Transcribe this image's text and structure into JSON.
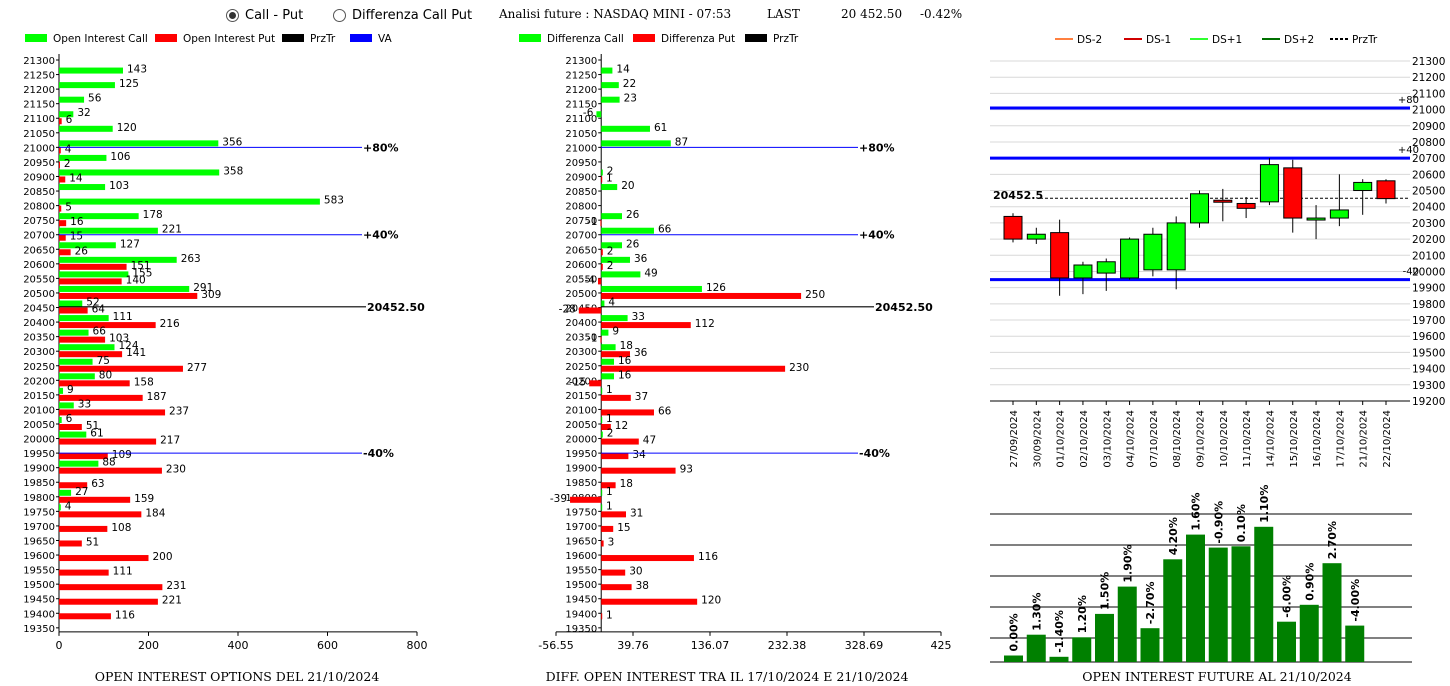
{
  "header": {
    "radio_call_put": "Call - Put",
    "radio_diff": "Differenza Call Put",
    "title": "Analisi future : NASDAQ MINI - 07:53",
    "last_label": "LAST",
    "last_value": "20 452.50",
    "change": "-0.42%"
  },
  "colors": {
    "green": "#00ff00",
    "red": "#ff0000",
    "blue": "#0000ff",
    "dark_green": "#008000"
  },
  "chart_data": [
    {
      "type": "bar",
      "orientation": "horizontal",
      "title": "OPEN INTEREST OPTIONS DEL 21/10/2024",
      "legend": [
        "Open Interest Call",
        "Open Interest Put",
        "PrzTr",
        "VA"
      ],
      "strikes": [
        21300,
        21250,
        21200,
        21150,
        21100,
        21050,
        21000,
        20950,
        20900,
        20850,
        20800,
        20750,
        20700,
        20650,
        20600,
        20550,
        20500,
        20450,
        20400,
        20350,
        20300,
        20250,
        20200,
        20150,
        20100,
        20050,
        20000,
        19950,
        19900,
        19850,
        19800,
        19750,
        19700,
        19650,
        19600,
        19550,
        19500,
        19450,
        19400,
        19350
      ],
      "call": [
        null,
        143,
        125,
        56,
        32,
        120,
        356,
        106,
        358,
        103,
        583,
        178,
        221,
        127,
        263,
        155,
        291,
        52,
        111,
        66,
        124,
        75,
        80,
        9,
        33,
        6,
        61,
        null,
        88,
        null,
        27,
        4,
        null,
        null,
        null,
        null,
        null,
        null,
        null,
        null
      ],
      "put": [
        null,
        null,
        null,
        null,
        6,
        null,
        4,
        2,
        14,
        null,
        5,
        16,
        15,
        26,
        151,
        140,
        309,
        64,
        216,
        103,
        141,
        277,
        158,
        187,
        237,
        51,
        217,
        109,
        230,
        63,
        159,
        184,
        108,
        51,
        200,
        111,
        231,
        221,
        116,
        null
      ],
      "xlim": [
        0,
        800
      ],
      "xticks": [
        0,
        200,
        400,
        600,
        800
      ],
      "levels": [
        {
          "strike": 21000,
          "label": "+80%"
        },
        {
          "strike": 20700,
          "label": "+40%"
        },
        {
          "strike": 19950,
          "label": "-40%"
        }
      ],
      "price": {
        "value": 20452.5,
        "label": "20452.50"
      }
    },
    {
      "type": "bar",
      "orientation": "horizontal",
      "title": "DIFF. OPEN INTEREST TRA IL 17/10/2024 E 21/10/2024",
      "legend": [
        "Differenza Call",
        "Differenza Put",
        "PrzTr"
      ],
      "strikes": [
        21300,
        21250,
        21200,
        21150,
        21100,
        21050,
        21000,
        20950,
        20900,
        20850,
        20800,
        20750,
        20700,
        20650,
        20600,
        20550,
        20500,
        20450,
        20400,
        20350,
        20300,
        20250,
        20200,
        20150,
        20100,
        20050,
        20000,
        19950,
        19900,
        19850,
        19800,
        19750,
        19700,
        19650,
        19600,
        19550,
        19500,
        19450,
        19400,
        19350
      ],
      "call": [
        null,
        14,
        22,
        23,
        -6,
        61,
        87,
        null,
        2,
        20,
        null,
        26,
        66,
        26,
        36,
        49,
        126,
        4,
        33,
        9,
        18,
        16,
        16,
        1,
        null,
        1,
        2,
        null,
        null,
        null,
        1,
        1,
        null,
        null,
        null,
        null,
        null,
        null,
        null,
        null
      ],
      "put": [
        null,
        null,
        null,
        null,
        null,
        null,
        null,
        null,
        1,
        null,
        null,
        -1,
        null,
        2,
        2,
        -4,
        250,
        -28,
        112,
        -1,
        36,
        230,
        -15,
        37,
        66,
        12,
        47,
        34,
        93,
        18,
        -39,
        31,
        15,
        3,
        116,
        30,
        38,
        120,
        1,
        null
      ],
      "xlim": [
        -56.55,
        425
      ],
      "xticks": [
        "-56.55",
        "39.76",
        "136.07",
        "232.38",
        "328.69",
        "425"
      ],
      "levels": [
        {
          "strike": 21000,
          "label": "+80%"
        },
        {
          "strike": 20700,
          "label": "+40%"
        },
        {
          "strike": 19950,
          "label": "-40%"
        }
      ],
      "price": {
        "value": 20452.5,
        "label": "20452.50"
      }
    },
    {
      "type": "candlestick",
      "legend": [
        "DS-2",
        "DS-1",
        "DS+1",
        "DS+2",
        "PrzTr"
      ],
      "dates": [
        "27/09/2024",
        "30/09/2024",
        "01/10/2024",
        "02/10/2024",
        "03/10/2024",
        "04/10/2024",
        "07/10/2024",
        "08/10/2024",
        "09/10/2024",
        "10/10/2024",
        "11/10/2024",
        "14/10/2024",
        "15/10/2024",
        "16/10/2024",
        "17/10/2024",
        "21/10/2024",
        "22/10/2024"
      ],
      "open": [
        20340,
        20200,
        20240,
        19960,
        19990,
        19960,
        20010,
        20010,
        20300,
        20440,
        20420,
        20430,
        20640,
        20330,
        20330,
        20500,
        20560
      ],
      "close": [
        20200,
        20230,
        19960,
        20040,
        20060,
        20200,
        20230,
        20300,
        20480,
        20430,
        20390,
        20660,
        20330,
        20330,
        20380,
        20550,
        20450
      ],
      "high": [
        20360,
        20270,
        20320,
        20060,
        20080,
        20210,
        20270,
        20340,
        20500,
        20510,
        20460,
        20700,
        20690,
        20410,
        20600,
        20570,
        20570
      ],
      "low": [
        20180,
        20170,
        19850,
        19860,
        19880,
        19950,
        19970,
        19890,
        20270,
        20310,
        20330,
        20410,
        20240,
        20200,
        20280,
        20350,
        20420
      ],
      "ylim": [
        19200,
        21300
      ],
      "yticks": [
        19200,
        19300,
        19400,
        19500,
        19600,
        19700,
        19800,
        19900,
        20000,
        20100,
        20200,
        20300,
        20400,
        20500,
        20600,
        20700,
        20800,
        20900,
        21000,
        21100,
        21200,
        21300
      ],
      "price_label": "20452.5",
      "levels": [
        {
          "value": 21010,
          "label": "+80"
        },
        {
          "value": 20700,
          "label": "+40"
        },
        {
          "value": 19950,
          "label": "-40"
        }
      ]
    },
    {
      "type": "bar",
      "title": "OPEN INTEREST FUTURE AL 21/10/2024",
      "labels": [
        "0.00%",
        "1.30%",
        "-1.40%",
        "1.20%",
        "1.50%",
        "1.90%",
        "-2.70%",
        "4.20%",
        "1.60%",
        "-0.90%",
        "0.10%",
        "1.10%",
        "-6.00%",
        "0.90%",
        "2.70%",
        "-4.00%"
      ],
      "values": [
        0.5,
        2.1,
        0.4,
        1.9,
        3.7,
        5.8,
        2.6,
        7.9,
        9.8,
        8.8,
        8.9,
        10.4,
        3.1,
        4.4,
        7.6,
        2.8
      ]
    }
  ]
}
